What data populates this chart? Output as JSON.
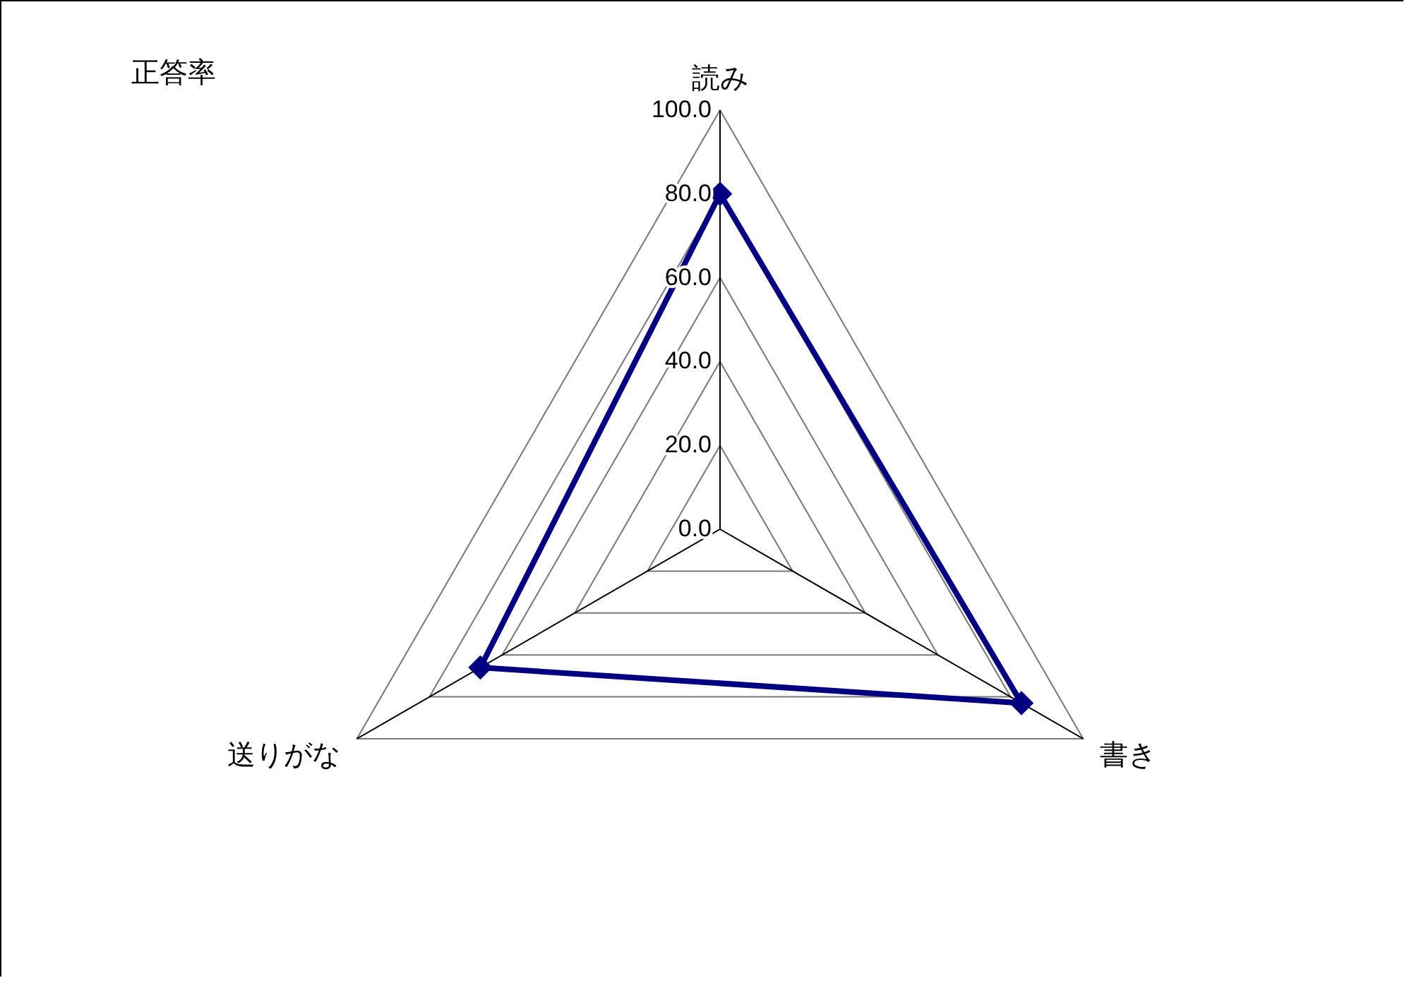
{
  "chart_data": {
    "type": "radar",
    "title": "正答率",
    "categories": [
      "読み",
      "書き",
      "送りがな"
    ],
    "series": [
      {
        "color": "#000080",
        "values": [
          80,
          83,
          66
        ]
      }
    ],
    "ylim": [
      0,
      100
    ],
    "yticks": [
      {
        "value": 0,
        "label": "0.0"
      },
      {
        "value": 20,
        "label": "20.0"
      },
      {
        "value": 40,
        "label": "40.0"
      },
      {
        "value": 60,
        "label": "60.0"
      },
      {
        "value": 80,
        "label": "80.0"
      },
      {
        "value": 100,
        "label": "100.0"
      }
    ],
    "grid": true,
    "marker": "diamond",
    "line_style": "solid"
  }
}
